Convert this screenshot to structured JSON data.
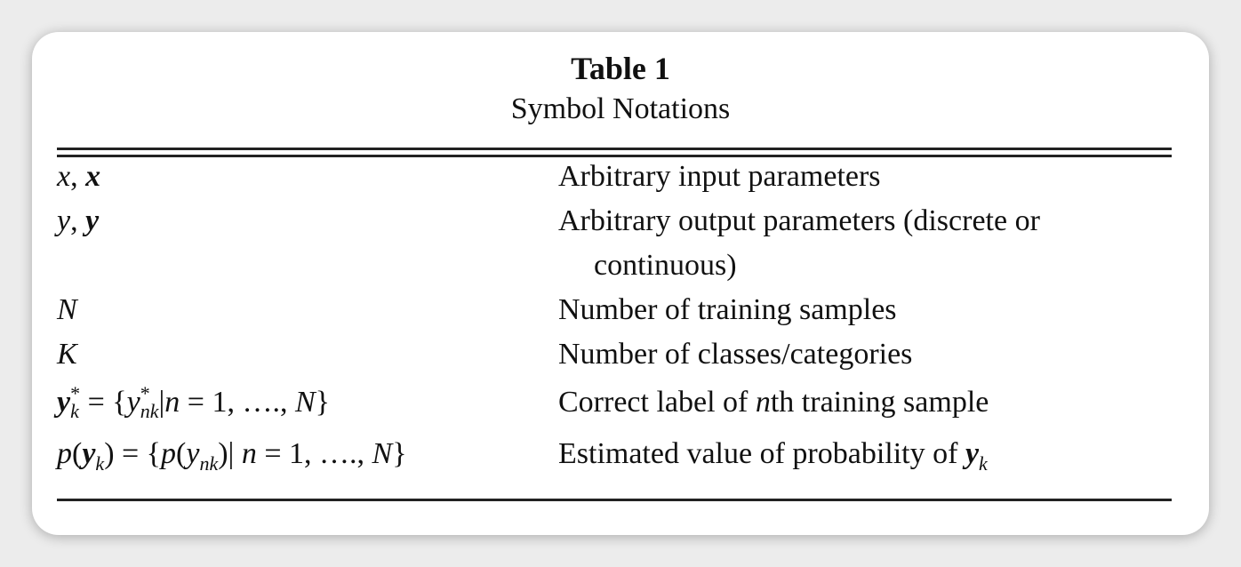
{
  "table": {
    "title": "Table 1",
    "subtitle": "Symbol Notations",
    "rows": [
      {
        "symbol": "x, x",
        "description": "Arbitrary input parameters"
      },
      {
        "symbol": "y, y",
        "description": "Arbitrary output parameters (discrete or",
        "description_cont": "continuous)"
      },
      {
        "symbol": "N",
        "description": "Number of training samples"
      },
      {
        "symbol": "K",
        "description": "Number of classes/categories"
      },
      {
        "symbol": "y_k^* = {y_nk^*|n = 1, …., N}",
        "description": "Correct label of nth training sample"
      },
      {
        "symbol": "p(y_k) = {p(y_nk)| n = 1, …., N}",
        "description": "Estimated value of probability of y_k"
      }
    ]
  }
}
